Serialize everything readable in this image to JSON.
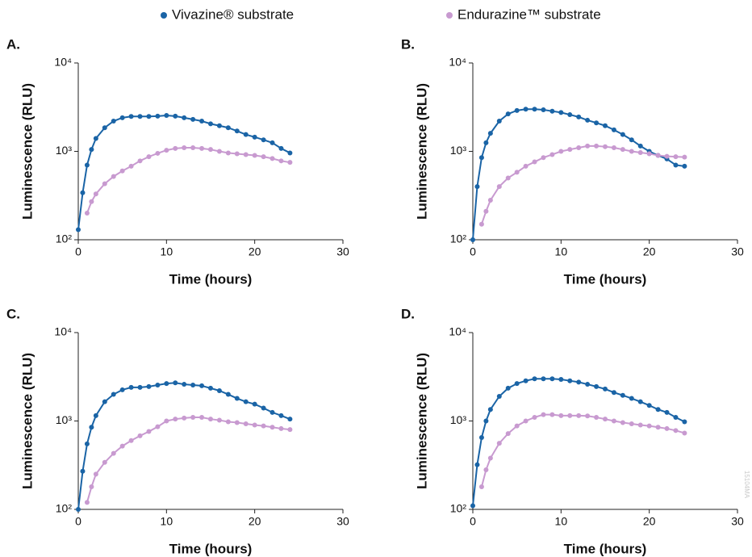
{
  "chart_data": [
    {
      "type": "line",
      "title": "A.",
      "x_label": "Time (hours)",
      "y_label": "Luminescence (RLU)",
      "log_scale": true,
      "xlim": [
        0,
        30
      ],
      "ylim": [
        100,
        10000
      ],
      "xticks": [
        0,
        10,
        20,
        30
      ],
      "yticks": [
        {
          "value": 100,
          "label": "10²"
        },
        {
          "value": 1000,
          "label": "10³"
        },
        {
          "value": 10000,
          "label": "10⁴"
        }
      ],
      "x": [
        0,
        0.5,
        1,
        1.5,
        2,
        3,
        4,
        5,
        6,
        7,
        8,
        9,
        10,
        11,
        12,
        13,
        14,
        15,
        16,
        17,
        18,
        19,
        20,
        21,
        22,
        23,
        24
      ],
      "series": [
        {
          "name": "Vivazine® substrate",
          "color": "#1a64a6",
          "values": [
            130,
            340,
            700,
            1050,
            1400,
            1850,
            2200,
            2400,
            2480,
            2480,
            2480,
            2500,
            2550,
            2500,
            2400,
            2300,
            2200,
            2050,
            1950,
            1850,
            1700,
            1550,
            1450,
            1350,
            1250,
            1080,
            960
          ]
        },
        {
          "name": "Endurazine™ substrate",
          "color": "#c89ad0",
          "values": [
            null,
            null,
            200,
            270,
            330,
            430,
            520,
            600,
            680,
            780,
            870,
            950,
            1030,
            1080,
            1100,
            1100,
            1080,
            1050,
            1000,
            960,
            940,
            920,
            900,
            870,
            830,
            780,
            750
          ]
        }
      ]
    },
    {
      "type": "line",
      "title": "B.",
      "x_label": "Time (hours)",
      "y_label": "Luminescence (RLU)",
      "log_scale": true,
      "xlim": [
        0,
        30
      ],
      "ylim": [
        100,
        10000
      ],
      "xticks": [
        0,
        10,
        20,
        30
      ],
      "yticks": [
        {
          "value": 100,
          "label": "10²"
        },
        {
          "value": 1000,
          "label": "10³"
        },
        {
          "value": 10000,
          "label": "10⁴"
        }
      ],
      "x": [
        0,
        0.5,
        1,
        1.5,
        2,
        3,
        4,
        5,
        6,
        7,
        8,
        9,
        10,
        11,
        12,
        13,
        14,
        15,
        16,
        17,
        18,
        19,
        20,
        21,
        22,
        23,
        24
      ],
      "series": [
        {
          "name": "Vivazine® substrate",
          "color": "#1a64a6",
          "values": [
            100,
            400,
            850,
            1250,
            1600,
            2200,
            2650,
            2900,
            3000,
            3000,
            2950,
            2850,
            2750,
            2600,
            2450,
            2250,
            2100,
            1950,
            1750,
            1550,
            1350,
            1150,
            1000,
            900,
            820,
            700,
            680
          ]
        },
        {
          "name": "Endurazine™ substrate",
          "color": "#c89ad0",
          "values": [
            null,
            null,
            150,
            210,
            280,
            400,
            500,
            580,
            680,
            760,
            850,
            920,
            1000,
            1050,
            1100,
            1150,
            1150,
            1130,
            1100,
            1050,
            1000,
            970,
            940,
            900,
            880,
            870,
            860
          ]
        }
      ]
    },
    {
      "type": "line",
      "title": "C.",
      "x_label": "Time (hours)",
      "y_label": "Luminescence (RLU)",
      "log_scale": true,
      "xlim": [
        0,
        30
      ],
      "ylim": [
        100,
        10000
      ],
      "xticks": [
        0,
        10,
        20,
        30
      ],
      "yticks": [
        {
          "value": 100,
          "label": "10²"
        },
        {
          "value": 1000,
          "label": "10³"
        },
        {
          "value": 10000,
          "label": "10⁴"
        }
      ],
      "x": [
        0,
        0.5,
        1,
        1.5,
        2,
        3,
        4,
        5,
        6,
        7,
        8,
        9,
        10,
        11,
        12,
        13,
        14,
        15,
        16,
        17,
        18,
        19,
        20,
        21,
        22,
        23,
        24
      ],
      "series": [
        {
          "name": "Vivazine® substrate",
          "color": "#1a64a6",
          "values": [
            100,
            270,
            550,
            850,
            1150,
            1650,
            2000,
            2250,
            2400,
            2400,
            2450,
            2550,
            2650,
            2700,
            2600,
            2550,
            2500,
            2350,
            2200,
            2000,
            1800,
            1650,
            1550,
            1400,
            1250,
            1150,
            1050
          ]
        },
        {
          "name": "Endurazine™ substrate",
          "color": "#c89ad0",
          "values": [
            null,
            null,
            120,
            180,
            250,
            340,
            430,
            520,
            600,
            680,
            760,
            860,
            1000,
            1050,
            1080,
            1100,
            1100,
            1050,
            1020,
            980,
            960,
            930,
            900,
            880,
            850,
            820,
            800
          ]
        }
      ]
    },
    {
      "type": "line",
      "title": "D.",
      "x_label": "Time (hours)",
      "y_label": "Luminescence (RLU)",
      "log_scale": true,
      "xlim": [
        0,
        30
      ],
      "ylim": [
        100,
        10000
      ],
      "xticks": [
        0,
        10,
        20,
        30
      ],
      "yticks": [
        {
          "value": 100,
          "label": "10²"
        },
        {
          "value": 1000,
          "label": "10³"
        },
        {
          "value": 10000,
          "label": "10⁴"
        }
      ],
      "x": [
        0,
        0.5,
        1,
        1.5,
        2,
        3,
        4,
        5,
        6,
        7,
        8,
        9,
        10,
        11,
        12,
        13,
        14,
        15,
        16,
        17,
        18,
        19,
        20,
        21,
        22,
        23,
        24
      ],
      "series": [
        {
          "name": "Vivazine® substrate",
          "color": "#1a64a6",
          "values": [
            110,
            320,
            650,
            1000,
            1350,
            1900,
            2350,
            2650,
            2850,
            3000,
            3000,
            3000,
            2950,
            2850,
            2750,
            2600,
            2450,
            2300,
            2100,
            1950,
            1800,
            1650,
            1500,
            1350,
            1250,
            1100,
            980
          ]
        },
        {
          "name": "Endurazine™ substrate",
          "color": "#c89ad0",
          "values": [
            null,
            null,
            180,
            280,
            380,
            560,
            720,
            880,
            1000,
            1100,
            1180,
            1180,
            1150,
            1150,
            1150,
            1140,
            1100,
            1050,
            1000,
            960,
            930,
            900,
            880,
            850,
            820,
            780,
            730
          ]
        }
      ]
    }
  ],
  "footnote": "15104MA"
}
